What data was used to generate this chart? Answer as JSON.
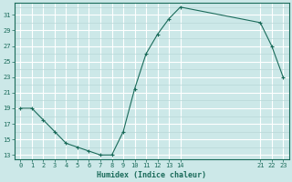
{
  "x_full": [
    0,
    1,
    2,
    3,
    4,
    5,
    6,
    7,
    8,
    9,
    10,
    11,
    12,
    13,
    14,
    21,
    22,
    23
  ],
  "y_full": [
    19,
    19,
    17.5,
    16,
    14.5,
    14,
    13.5,
    13,
    13,
    16,
    21.5,
    26,
    28.5,
    30.5,
    32,
    30,
    27,
    23
  ],
  "xlim": [
    -0.5,
    23.5
  ],
  "ylim": [
    12.5,
    32.5
  ],
  "yticks": [
    13,
    15,
    17,
    19,
    21,
    23,
    25,
    27,
    29,
    31
  ],
  "xticks": [
    0,
    1,
    2,
    3,
    4,
    5,
    6,
    7,
    8,
    9,
    10,
    11,
    12,
    13,
    14,
    21,
    22,
    23
  ],
  "xlabel": "Humidex (Indice chaleur)",
  "line_color": "#1a6b5a",
  "marker_color": "#1a6b5a",
  "bg_color": "#cce8e8",
  "grid_major_color": "#ffffff",
  "grid_minor_color": "#b8d8d8"
}
